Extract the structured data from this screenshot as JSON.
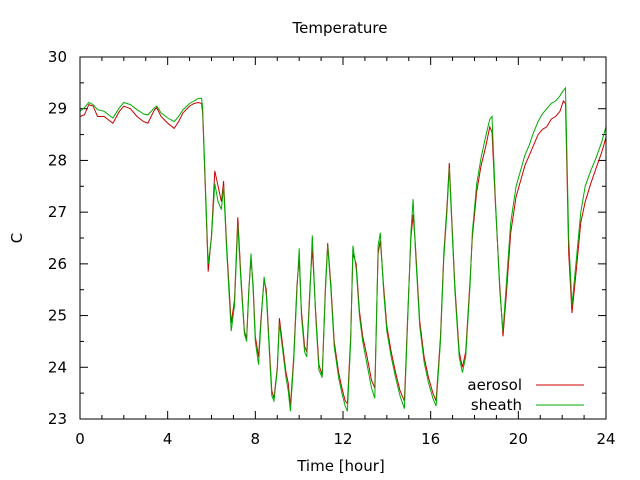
{
  "chart_data": {
    "type": "line",
    "title": "Temperature",
    "xlabel": "Time [hour]",
    "ylabel": "C",
    "xlim": [
      0,
      24
    ],
    "ylim": [
      23,
      30
    ],
    "xticks": [
      0,
      4,
      8,
      12,
      16,
      20,
      24
    ],
    "yticks": [
      23,
      24,
      25,
      26,
      27,
      28,
      29,
      30
    ],
    "grid": false,
    "legend_position": "bottom-right",
    "series": [
      {
        "name": "aerosol",
        "color": "#cc0000",
        "points": [
          [
            0,
            28.85
          ],
          [
            0.2,
            28.88
          ],
          [
            0.4,
            29.08
          ],
          [
            0.6,
            29.05
          ],
          [
            0.8,
            28.85
          ],
          [
            1.1,
            28.85
          ],
          [
            1.4,
            28.75
          ],
          [
            1.5,
            28.72
          ],
          [
            1.8,
            28.95
          ],
          [
            2.0,
            29.05
          ],
          [
            2.3,
            29.0
          ],
          [
            2.6,
            28.85
          ],
          [
            2.9,
            28.75
          ],
          [
            3.1,
            28.72
          ],
          [
            3.4,
            28.98
          ],
          [
            3.5,
            29.02
          ],
          [
            3.7,
            28.85
          ],
          [
            4.0,
            28.72
          ],
          [
            4.3,
            28.62
          ],
          [
            4.5,
            28.75
          ],
          [
            4.7,
            28.92
          ],
          [
            5.0,
            29.05
          ],
          [
            5.2,
            29.1
          ],
          [
            5.4,
            29.12
          ],
          [
            5.55,
            29.1
          ],
          [
            5.6,
            28.9
          ],
          [
            5.85,
            25.85
          ],
          [
            6.0,
            26.55
          ],
          [
            6.15,
            27.8
          ],
          [
            6.3,
            27.5
          ],
          [
            6.45,
            27.2
          ],
          [
            6.55,
            27.6
          ],
          [
            6.7,
            26.3
          ],
          [
            6.9,
            24.85
          ],
          [
            7.05,
            25.3
          ],
          [
            7.2,
            26.9
          ],
          [
            7.35,
            25.7
          ],
          [
            7.5,
            24.7
          ],
          [
            7.6,
            24.55
          ],
          [
            7.7,
            25.5
          ],
          [
            7.8,
            26.1
          ],
          [
            7.9,
            25.6
          ],
          [
            8.0,
            24.6
          ],
          [
            8.15,
            24.2
          ],
          [
            8.25,
            24.9
          ],
          [
            8.4,
            25.7
          ],
          [
            8.5,
            25.5
          ],
          [
            8.65,
            24.3
          ],
          [
            8.75,
            23.55
          ],
          [
            8.85,
            23.4
          ],
          [
            9.0,
            24.0
          ],
          [
            9.1,
            24.95
          ],
          [
            9.2,
            24.6
          ],
          [
            9.4,
            23.9
          ],
          [
            9.5,
            23.7
          ],
          [
            9.6,
            23.25
          ],
          [
            9.75,
            24.2
          ],
          [
            9.9,
            25.6
          ],
          [
            10.0,
            26.1
          ],
          [
            10.1,
            25.1
          ],
          [
            10.25,
            24.4
          ],
          [
            10.35,
            24.3
          ],
          [
            10.5,
            25.6
          ],
          [
            10.6,
            26.3
          ],
          [
            10.75,
            25.1
          ],
          [
            10.9,
            24.05
          ],
          [
            11.05,
            23.85
          ],
          [
            11.2,
            25.6
          ],
          [
            11.3,
            26.4
          ],
          [
            11.45,
            25.6
          ],
          [
            11.6,
            24.5
          ],
          [
            11.8,
            23.9
          ],
          [
            11.95,
            23.6
          ],
          [
            12.1,
            23.35
          ],
          [
            12.2,
            23.3
          ],
          [
            12.35,
            24.6
          ],
          [
            12.45,
            26.2
          ],
          [
            12.6,
            26.0
          ],
          [
            12.75,
            25.1
          ],
          [
            12.9,
            24.6
          ],
          [
            13.1,
            24.2
          ],
          [
            13.3,
            23.75
          ],
          [
            13.45,
            23.6
          ],
          [
            13.6,
            26.2
          ],
          [
            13.7,
            26.45
          ],
          [
            13.85,
            25.6
          ],
          [
            14.0,
            24.8
          ],
          [
            14.2,
            24.3
          ],
          [
            14.4,
            23.9
          ],
          [
            14.6,
            23.55
          ],
          [
            14.8,
            23.35
          ],
          [
            14.95,
            25.0
          ],
          [
            15.1,
            26.5
          ],
          [
            15.2,
            26.95
          ],
          [
            15.3,
            26.4
          ],
          [
            15.5,
            24.9
          ],
          [
            15.7,
            24.2
          ],
          [
            15.9,
            23.8
          ],
          [
            16.1,
            23.5
          ],
          [
            16.25,
            23.35
          ],
          [
            16.45,
            24.6
          ],
          [
            16.6,
            26.2
          ],
          [
            16.75,
            27.15
          ],
          [
            16.85,
            27.95
          ],
          [
            16.95,
            27.0
          ],
          [
            17.1,
            25.6
          ],
          [
            17.3,
            24.3
          ],
          [
            17.45,
            24.0
          ],
          [
            17.6,
            24.3
          ],
          [
            17.8,
            25.7
          ],
          [
            17.9,
            26.5
          ],
          [
            18.1,
            27.4
          ],
          [
            18.3,
            27.9
          ],
          [
            18.5,
            28.25
          ],
          [
            18.7,
            28.65
          ],
          [
            18.8,
            28.55
          ],
          [
            18.95,
            27.2
          ],
          [
            19.15,
            25.6
          ],
          [
            19.3,
            24.6
          ],
          [
            19.45,
            25.4
          ],
          [
            19.65,
            26.6
          ],
          [
            19.9,
            27.3
          ],
          [
            20.1,
            27.6
          ],
          [
            20.3,
            27.9
          ],
          [
            20.5,
            28.1
          ],
          [
            20.7,
            28.3
          ],
          [
            20.9,
            28.5
          ],
          [
            21.1,
            28.6
          ],
          [
            21.3,
            28.65
          ],
          [
            21.5,
            28.8
          ],
          [
            21.7,
            28.85
          ],
          [
            21.9,
            28.95
          ],
          [
            22.05,
            29.15
          ],
          [
            22.15,
            29.1
          ],
          [
            22.3,
            26.2
          ],
          [
            22.45,
            25.05
          ],
          [
            22.65,
            25.9
          ],
          [
            22.85,
            26.8
          ],
          [
            23.05,
            27.2
          ],
          [
            23.3,
            27.55
          ],
          [
            23.55,
            27.85
          ],
          [
            23.8,
            28.15
          ],
          [
            24,
            28.45
          ]
        ]
      },
      {
        "name": "sheath",
        "color": "#00aa00",
        "points": [
          [
            0,
            28.95
          ],
          [
            0.2,
            29.02
          ],
          [
            0.4,
            29.12
          ],
          [
            0.6,
            29.08
          ],
          [
            0.8,
            28.98
          ],
          [
            1.1,
            28.95
          ],
          [
            1.4,
            28.85
          ],
          [
            1.5,
            28.82
          ],
          [
            1.8,
            29.02
          ],
          [
            2.0,
            29.12
          ],
          [
            2.3,
            29.08
          ],
          [
            2.6,
            28.98
          ],
          [
            2.9,
            28.9
          ],
          [
            3.1,
            28.88
          ],
          [
            3.4,
            29.02
          ],
          [
            3.5,
            29.05
          ],
          [
            3.7,
            28.92
          ],
          [
            4.0,
            28.82
          ],
          [
            4.3,
            28.75
          ],
          [
            4.5,
            28.85
          ],
          [
            4.7,
            28.98
          ],
          [
            5.0,
            29.1
          ],
          [
            5.2,
            29.15
          ],
          [
            5.4,
            29.2
          ],
          [
            5.55,
            29.2
          ],
          [
            5.6,
            29.0
          ],
          [
            5.85,
            26.0
          ],
          [
            6.0,
            26.5
          ],
          [
            6.15,
            27.55
          ],
          [
            6.3,
            27.2
          ],
          [
            6.45,
            27.05
          ],
          [
            6.55,
            27.5
          ],
          [
            6.7,
            26.2
          ],
          [
            6.9,
            24.7
          ],
          [
            7.05,
            25.2
          ],
          [
            7.2,
            26.75
          ],
          [
            7.35,
            25.6
          ],
          [
            7.5,
            24.65
          ],
          [
            7.6,
            24.5
          ],
          [
            7.7,
            25.45
          ],
          [
            7.8,
            26.2
          ],
          [
            7.9,
            25.5
          ],
          [
            8.0,
            24.5
          ],
          [
            8.15,
            24.05
          ],
          [
            8.25,
            24.8
          ],
          [
            8.4,
            25.75
          ],
          [
            8.5,
            25.4
          ],
          [
            8.65,
            24.2
          ],
          [
            8.75,
            23.45
          ],
          [
            8.85,
            23.35
          ],
          [
            9.0,
            23.95
          ],
          [
            9.1,
            24.85
          ],
          [
            9.2,
            24.5
          ],
          [
            9.4,
            23.8
          ],
          [
            9.5,
            23.55
          ],
          [
            9.6,
            23.15
          ],
          [
            9.75,
            24.1
          ],
          [
            9.9,
            25.5
          ],
          [
            10.0,
            26.3
          ],
          [
            10.1,
            25.0
          ],
          [
            10.25,
            24.3
          ],
          [
            10.35,
            24.2
          ],
          [
            10.5,
            25.5
          ],
          [
            10.6,
            26.55
          ],
          [
            10.75,
            25.0
          ],
          [
            10.9,
            23.95
          ],
          [
            11.05,
            23.8
          ],
          [
            11.2,
            25.5
          ],
          [
            11.3,
            26.35
          ],
          [
            11.45,
            25.5
          ],
          [
            11.6,
            24.4
          ],
          [
            11.8,
            23.8
          ],
          [
            11.95,
            23.5
          ],
          [
            12.1,
            23.25
          ],
          [
            12.2,
            23.15
          ],
          [
            12.35,
            24.5
          ],
          [
            12.45,
            26.35
          ],
          [
            12.6,
            25.9
          ],
          [
            12.75,
            25.0
          ],
          [
            12.9,
            24.5
          ],
          [
            13.1,
            24.05
          ],
          [
            13.3,
            23.6
          ],
          [
            13.45,
            23.4
          ],
          [
            13.6,
            26.35
          ],
          [
            13.7,
            26.6
          ],
          [
            13.85,
            25.5
          ],
          [
            14.0,
            24.7
          ],
          [
            14.2,
            24.2
          ],
          [
            14.4,
            23.8
          ],
          [
            14.6,
            23.45
          ],
          [
            14.8,
            23.2
          ],
          [
            14.95,
            24.9
          ],
          [
            15.1,
            26.6
          ],
          [
            15.2,
            27.25
          ],
          [
            15.3,
            26.3
          ],
          [
            15.5,
            24.8
          ],
          [
            15.7,
            24.1
          ],
          [
            15.9,
            23.7
          ],
          [
            16.1,
            23.4
          ],
          [
            16.25,
            23.25
          ],
          [
            16.45,
            24.5
          ],
          [
            16.6,
            26.1
          ],
          [
            16.75,
            27.05
          ],
          [
            16.85,
            27.85
          ],
          [
            16.95,
            26.9
          ],
          [
            17.1,
            25.5
          ],
          [
            17.3,
            24.2
          ],
          [
            17.45,
            23.9
          ],
          [
            17.6,
            24.2
          ],
          [
            17.8,
            25.6
          ],
          [
            17.9,
            26.6
          ],
          [
            18.1,
            27.55
          ],
          [
            18.3,
            28.05
          ],
          [
            18.5,
            28.45
          ],
          [
            18.7,
            28.8
          ],
          [
            18.8,
            28.85
          ],
          [
            18.95,
            27.3
          ],
          [
            19.15,
            25.5
          ],
          [
            19.3,
            24.7
          ],
          [
            19.45,
            25.6
          ],
          [
            19.65,
            26.8
          ],
          [
            19.9,
            27.5
          ],
          [
            20.1,
            27.8
          ],
          [
            20.3,
            28.1
          ],
          [
            20.5,
            28.3
          ],
          [
            20.7,
            28.55
          ],
          [
            20.9,
            28.75
          ],
          [
            21.1,
            28.9
          ],
          [
            21.3,
            29.0
          ],
          [
            21.5,
            29.1
          ],
          [
            21.7,
            29.15
          ],
          [
            21.9,
            29.25
          ],
          [
            22.05,
            29.35
          ],
          [
            22.15,
            29.4
          ],
          [
            22.3,
            26.5
          ],
          [
            22.45,
            25.2
          ],
          [
            22.65,
            26.1
          ],
          [
            22.85,
            27.0
          ],
          [
            23.05,
            27.5
          ],
          [
            23.3,
            27.8
          ],
          [
            23.55,
            28.05
          ],
          [
            23.8,
            28.35
          ],
          [
            24,
            28.65
          ]
        ]
      }
    ]
  }
}
